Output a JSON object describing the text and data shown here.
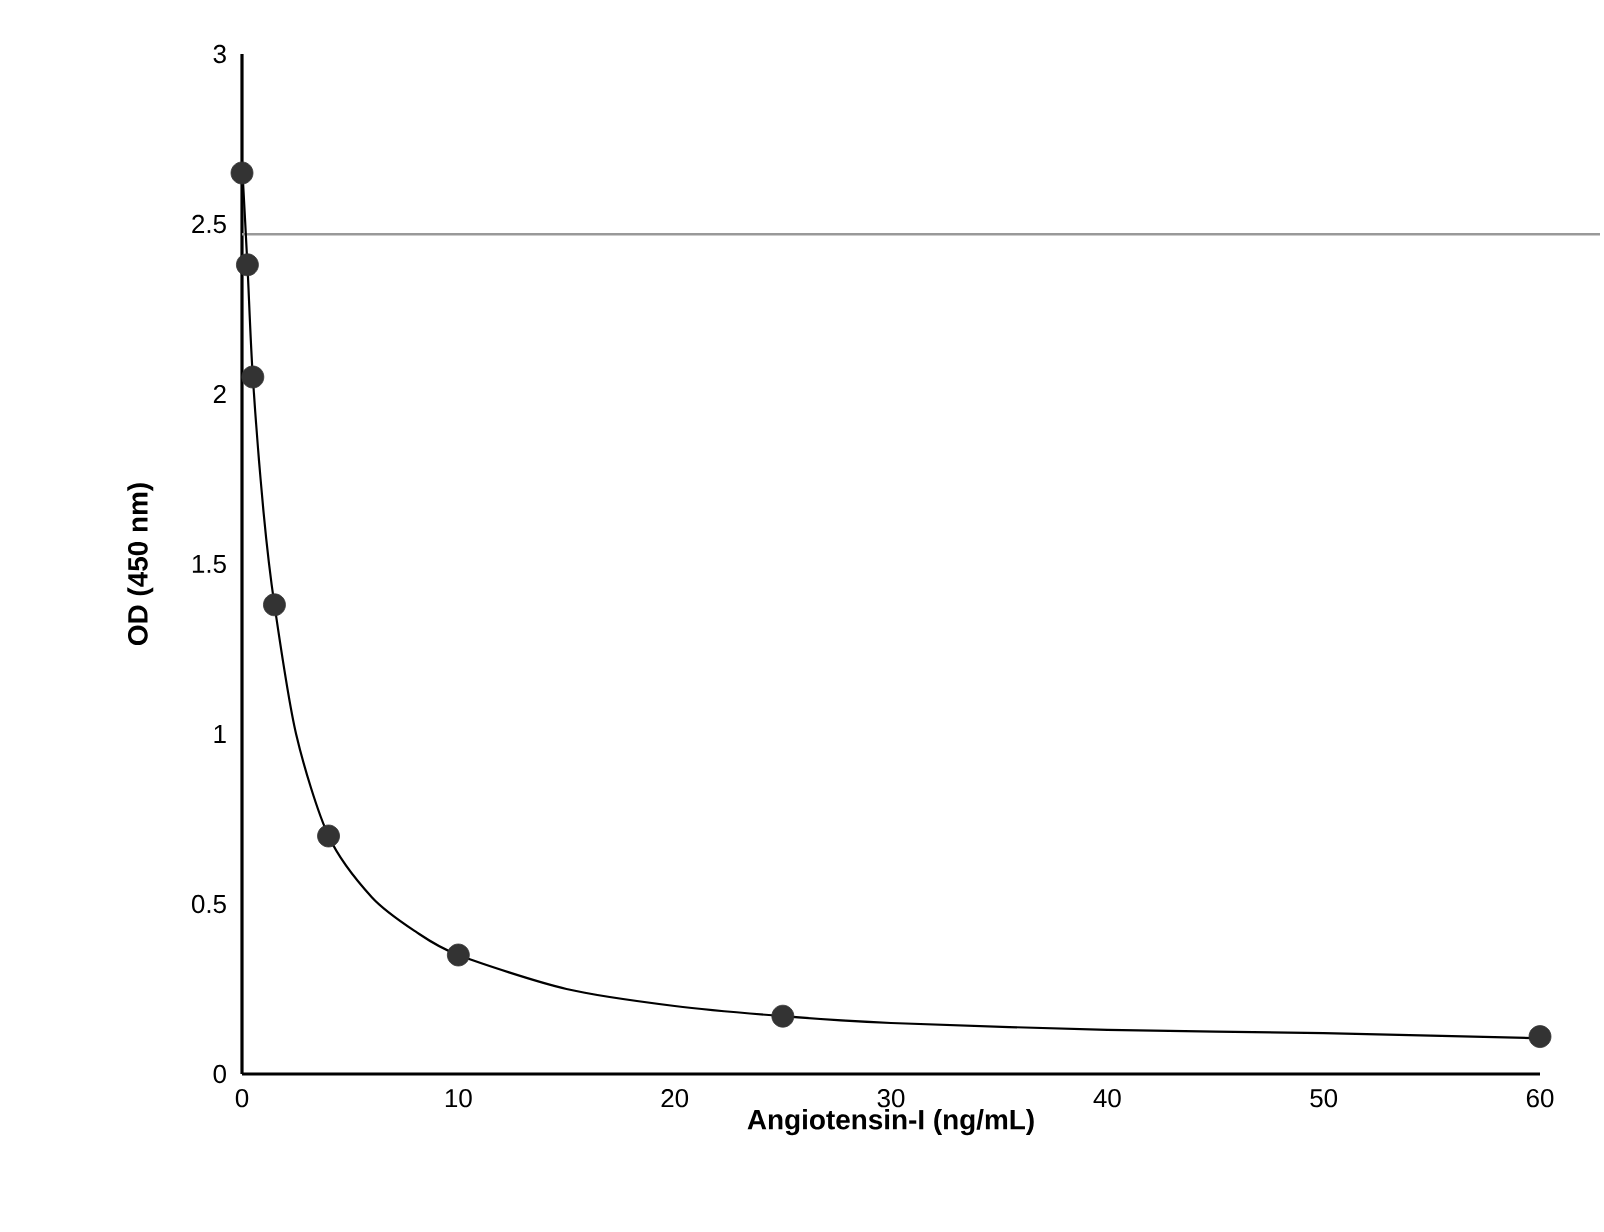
{
  "chart_data": {
    "type": "scatter",
    "xlabel": "Angiotensin-I (ng/mL)",
    "ylabel": "OD (450 nm)",
    "xlim": [
      0,
      60
    ],
    "ylim": [
      0,
      3
    ],
    "xticks": [
      0,
      10,
      20,
      30,
      40,
      50,
      60
    ],
    "yticks": [
      0,
      0.5,
      1,
      1.5,
      2,
      2.5,
      3
    ],
    "grid": false,
    "series": [
      {
        "marker": "circle",
        "color": "#333333",
        "x": [
          0,
          0.25,
          0.5,
          1.5,
          4,
          10,
          25,
          60
        ],
        "values": [
          2.65,
          2.38,
          2.05,
          1.38,
          0.7,
          0.35,
          0.17,
          0.11
        ]
      },
      {
        "type": "line",
        "color": "#000000",
        "marker": "none",
        "line_style": "solid",
        "x": [
          0,
          0.25,
          0.5,
          1,
          1.5,
          2.5,
          4,
          6,
          8,
          10,
          15,
          20,
          25,
          30,
          40,
          50,
          60
        ],
        "values": [
          2.68,
          2.38,
          2.05,
          1.65,
          1.38,
          1.0,
          0.7,
          0.52,
          0.42,
          0.35,
          0.25,
          0.2,
          0.17,
          0.15,
          0.13,
          0.12,
          0.105
        ]
      }
    ],
    "ref_lines": [
      {
        "axis": "y",
        "value": 2.47,
        "color": "#999999",
        "line_style": "solid"
      }
    ]
  }
}
